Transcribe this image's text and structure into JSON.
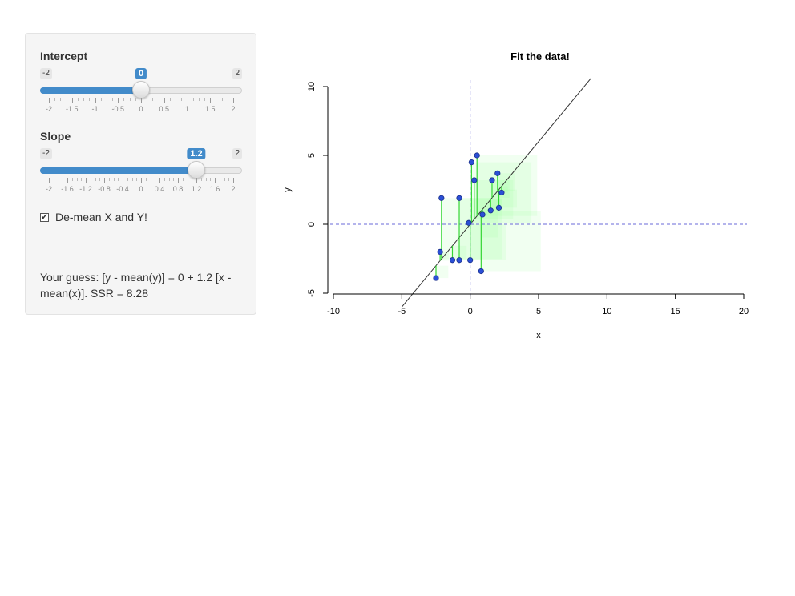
{
  "sidebar": {
    "intercept": {
      "label": "Intercept",
      "min": -2,
      "max": 2,
      "value": 0,
      "min_label": "-2",
      "max_label": "2",
      "value_label": "0",
      "tick_labels": [
        "-2",
        "-1.5",
        "-1",
        "-0.5",
        "0",
        "0.5",
        "1",
        "1.5",
        "2"
      ]
    },
    "slope": {
      "label": "Slope",
      "min": -2,
      "max": 2,
      "value": 1.2,
      "min_label": "-2",
      "max_label": "2",
      "value_label": "1.2",
      "tick_labels": [
        "-2",
        "-1.6",
        "-1.2",
        "-0.8",
        "-0.4",
        "0",
        "0.4",
        "0.8",
        "1.2",
        "1.6",
        "2"
      ]
    },
    "demean": {
      "label": "De-mean X and Y!",
      "checked": true
    },
    "guess_text": "Your guess: [y - mean(y)] = 0 + 1.2 [x - mean(x)]. SSR = 8.28"
  },
  "chart_data": {
    "type": "scatter",
    "title": "Fit the data!",
    "xlabel": "x",
    "ylabel": "y",
    "xlim": [
      -10,
      20
    ],
    "ylim": [
      -5,
      10
    ],
    "x_ticks": [
      "-10",
      "-5",
      "0",
      "5",
      "10",
      "15",
      "20"
    ],
    "y_ticks": [
      "-5",
      "0",
      "5",
      "10"
    ],
    "fit_line": {
      "intercept": 0,
      "slope": 1.2
    },
    "reference_lines": {
      "x": 0,
      "y": 0,
      "color": "#6a6ad8"
    },
    "point_color": "#2b4fd6",
    "residual_color": "#33d633",
    "points": [
      {
        "x": -2.1,
        "y": 1.9
      },
      {
        "x": -0.8,
        "y": 1.9
      },
      {
        "x": -2.2,
        "y": -2.0
      },
      {
        "x": -1.3,
        "y": -2.6
      },
      {
        "x": -0.8,
        "y": -2.6
      },
      {
        "x": -2.5,
        "y": -3.9
      },
      {
        "x": 0.0,
        "y": -2.6
      },
      {
        "x": -0.1,
        "y": 0.1
      },
      {
        "x": 0.1,
        "y": 4.5
      },
      {
        "x": 0.3,
        "y": 3.2
      },
      {
        "x": 0.5,
        "y": 5.0
      },
      {
        "x": 0.8,
        "y": -3.4
      },
      {
        "x": 0.9,
        "y": 0.7
      },
      {
        "x": 1.5,
        "y": 1.0
      },
      {
        "x": 1.6,
        "y": 3.2
      },
      {
        "x": 2.0,
        "y": 3.7
      },
      {
        "x": 2.1,
        "y": 1.2
      },
      {
        "x": 2.3,
        "y": 2.3
      }
    ]
  }
}
